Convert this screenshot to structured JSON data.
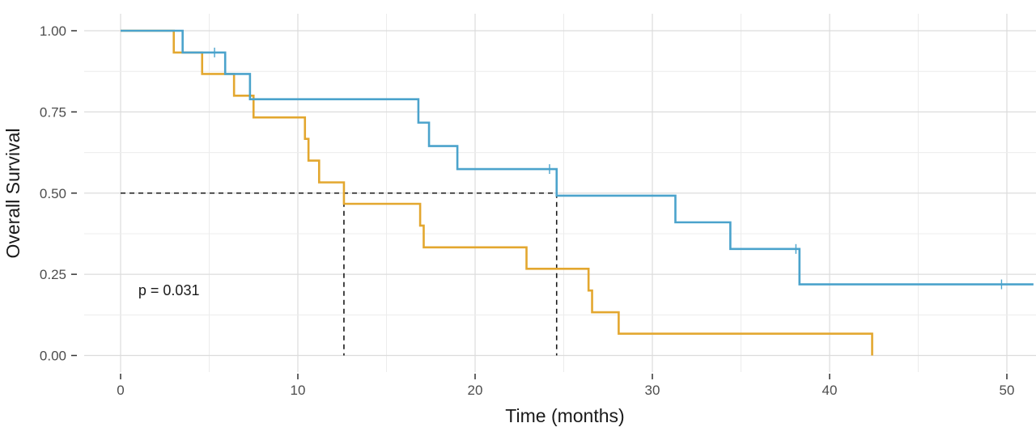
{
  "chart_data": {
    "type": "line",
    "subtype": "kaplan-meier step",
    "title": "",
    "xlabel": "Time (months)",
    "ylabel": "Overall Survival",
    "xlim": [
      -2,
      51.5
    ],
    "ylim": [
      -0.04,
      1.04
    ],
    "xticks": [
      0,
      10,
      20,
      30,
      40,
      50
    ],
    "xtick_labels": [
      "0",
      "10",
      "20",
      "30",
      "40",
      "50"
    ],
    "yticks": [
      0,
      0.25,
      0.5,
      0.75,
      1.0
    ],
    "ytick_labels": [
      "0.00",
      "0.25",
      "0.50",
      "0.75",
      "1.00"
    ],
    "grid": true,
    "legend": "none",
    "annotations": [
      {
        "text": "p = 0.031",
        "x": 1,
        "y": 0.2
      }
    ],
    "median_lines": [
      {
        "y": 0.5,
        "x_start": 0,
        "x_end": 12.6,
        "color": "#1a1a1a"
      },
      {
        "y": 0.5,
        "x_start": 0,
        "x_end": 24.6,
        "color": "#1a1a1a"
      }
    ],
    "series": [
      {
        "color": "#4ba3cc",
        "x": [
          0,
          3.5,
          5.9,
          7.3,
          16.8,
          17.4,
          19.0,
          24.6,
          31.3,
          34.4,
          38.3,
          51.5
        ],
        "y": [
          1.0,
          0.933,
          0.867,
          0.789,
          0.717,
          0.645,
          0.574,
          0.492,
          0.41,
          0.328,
          0.219,
          0.219
        ],
        "censored": [
          {
            "x": 5.3,
            "y": 0.933
          },
          {
            "x": 24.2,
            "y": 0.574
          },
          {
            "x": 38.1,
            "y": 0.328
          },
          {
            "x": 49.7,
            "y": 0.219
          }
        ]
      },
      {
        "color": "#e3a72f",
        "x": [
          0,
          3.0,
          4.6,
          6.4,
          7.5,
          10.4,
          10.6,
          11.2,
          12.6,
          16.9,
          17.1,
          22.9,
          26.4,
          26.6,
          28.1,
          42.4
        ],
        "y": [
          1.0,
          0.933,
          0.867,
          0.8,
          0.733,
          0.667,
          0.6,
          0.533,
          0.467,
          0.4,
          0.333,
          0.267,
          0.2,
          0.133,
          0.067,
          0.0
        ],
        "censored": []
      }
    ]
  }
}
